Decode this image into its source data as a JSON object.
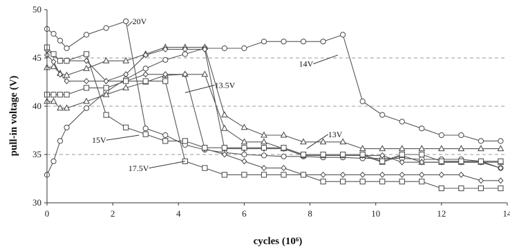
{
  "chart_data": {
    "type": "line",
    "xlabel": "cycles (10⁶)",
    "ylabel": "pull-in voltage (V)",
    "xlim": [
      0,
      14
    ],
    "ylim": [
      30,
      50
    ],
    "x_ticks": [
      "0",
      "2",
      "4",
      "6",
      "8",
      "10",
      "12",
      "14"
    ],
    "y_ticks": [
      "30",
      "35",
      "40",
      "45",
      "50"
    ],
    "grid": "horizontal dashed at 35, 40, 45",
    "legend": "none; series labeled inline",
    "series": [
      {
        "name": "20V",
        "marker": "circle",
        "label_pos": [
          2.6,
          48.5
        ],
        "label_anchor": [
          2.45,
          48.3
        ],
        "lines": [
          {
            "x": [
              0,
              0.2,
              0.4,
              0.6,
              1.2,
              1.8,
              2.4,
              3.0,
              3.6,
              4.2,
              4.8,
              5.4,
              6.0,
              6.6,
              7.2,
              7.8,
              8.4,
              9.0,
              9.6,
              10.2,
              10.8,
              11.4,
              12.0,
              12.6,
              13.2,
              13.8
            ],
            "y": [
              48.0,
              47.5,
              46.8,
              46.0,
              47.4,
              48.1,
              48.8,
              37.7,
              37.0,
              36.0,
              35.5,
              35.2,
              35.0,
              34.9,
              34.8,
              34.8,
              34.7,
              34.7,
              34.6,
              34.6,
              34.6,
              34.5,
              34.5,
              34.5,
              34.3,
              33.6
            ]
          }
        ]
      },
      {
        "name": "14V",
        "marker": "circle",
        "label_pos": [
          8.1,
          44.1
        ],
        "label_anchor": [
          8.85,
          45.3
        ],
        "lines": [
          {
            "x": [
              0,
              0.2,
              0.4,
              0.6,
              1.2,
              1.8,
              2.4,
              3.0,
              3.6,
              4.2,
              4.8,
              5.4,
              6.0,
              6.6,
              7.2,
              7.8,
              8.4,
              9.0,
              9.6,
              10.2,
              10.8,
              11.4,
              12.0,
              12.6,
              13.2,
              13.8
            ],
            "y": [
              32.9,
              34.3,
              36.4,
              37.8,
              39.8,
              41.5,
              42.8,
              43.9,
              44.8,
              45.4,
              46.0,
              46.0,
              46.0,
              46.7,
              46.7,
              46.7,
              46.7,
              47.4,
              40.5,
              39.1,
              38.4,
              37.7,
              37.0,
              37.0,
              36.4,
              36.4
            ]
          }
        ]
      },
      {
        "name": "13.5V",
        "marker": "triangle",
        "label_pos": [
          5.1,
          41.9
        ],
        "label_anchor": [
          4.2,
          41.4
        ],
        "lines": [
          {
            "x": [
              0,
              0.2,
              0.4,
              0.6,
              1.2,
              1.8,
              2.4,
              3.0,
              3.6,
              4.2,
              4.8,
              5.4,
              6.0,
              6.6,
              7.2,
              7.8,
              8.4,
              9.0,
              9.6,
              10.2,
              10.8,
              11.4,
              12.0,
              12.6,
              13.2,
              13.8
            ],
            "y": [
              44.0,
              44.1,
              43.4,
              43.2,
              43.9,
              44.7,
              44.7,
              45.4,
              46.1,
              46.1,
              46.1,
              39.1,
              37.8,
              37.0,
              37.0,
              36.3,
              36.3,
              36.3,
              35.6,
              35.6,
              35.6,
              35.6,
              35.6,
              35.6,
              35.6,
              35.6
            ]
          },
          {
            "x": [
              0,
              0.2,
              0.4,
              0.6,
              1.2,
              1.8,
              2.4,
              3.0,
              3.6,
              4.2,
              4.8,
              5.4,
              6.0,
              6.6,
              7.2,
              7.8,
              8.4,
              9.0,
              9.6,
              10.2,
              10.8,
              11.4,
              12.0,
              12.6,
              13.2,
              13.8
            ],
            "y": [
              40.5,
              40.5,
              39.8,
              39.8,
              40.5,
              41.2,
              41.9,
              42.5,
              43.2,
              43.3,
              43.3,
              37.7,
              36.3,
              36.3,
              35.6,
              34.9,
              34.9,
              34.9,
              34.9,
              34.2,
              34.9,
              34.2,
              34.2,
              34.2,
              34.2,
              34.2
            ]
          }
        ]
      },
      {
        "name": "13V",
        "marker": "diamond",
        "label_pos": [
          8.55,
          36.8
        ],
        "label_anchor": [
          7.9,
          35.6
        ],
        "lines": [
          {
            "x": [
              0,
              0.2,
              0.4,
              0.6,
              1.2,
              1.8,
              2.4,
              3.0,
              3.6,
              4.2,
              4.8,
              5.4,
              6.0,
              6.6,
              7.2,
              7.8,
              8.4,
              9.0,
              9.6,
              10.2,
              10.8,
              11.4,
              12.0,
              12.6,
              13.2,
              13.8
            ],
            "y": [
              45.3,
              44.6,
              43.3,
              42.6,
              42.6,
              42.6,
              43.3,
              45.3,
              45.9,
              45.9,
              45.9,
              35.6,
              35.6,
              35.6,
              35.6,
              34.9,
              34.9,
              34.9,
              34.9,
              34.9,
              34.2,
              34.2,
              34.2,
              34.2,
              34.2,
              33.6
            ]
          },
          {
            "x": [
              0,
              0.2,
              0.4,
              0.6,
              1.2,
              1.8,
              2.4,
              3.0,
              3.6,
              4.2,
              4.8,
              5.4,
              6.0,
              6.6,
              7.2,
              7.8,
              8.4,
              9.0,
              9.6,
              10.2,
              10.8,
              11.4,
              12.0,
              12.6,
              13.2,
              13.8
            ],
            "y": [
              45.8,
              45.3,
              44.7,
              44.7,
              44.7,
              42.6,
              42.6,
              43.3,
              43.3,
              43.3,
              35.6,
              35.0,
              34.3,
              33.6,
              33.6,
              32.9,
              32.9,
              32.9,
              32.9,
              32.9,
              32.9,
              32.9,
              32.9,
              32.9,
              32.3,
              32.3
            ]
          }
        ]
      },
      {
        "name": "15V",
        "marker": "square",
        "label_pos": [
          1.8,
          36.2
        ],
        "label_anchor": [
          2.8,
          37.0
        ],
        "lines": [
          {
            "x": [
              0,
              0.2,
              0.4,
              0.6,
              1.2,
              1.8,
              2.4,
              3.0,
              3.6,
              4.2,
              4.8,
              5.4,
              6.0,
              6.6,
              7.2,
              7.8,
              8.4,
              9.0,
              9.6,
              10.2,
              10.8,
              11.4,
              12.0,
              12.6,
              13.2,
              13.8
            ],
            "y": [
              46.1,
              45.4,
              44.7,
              44.7,
              45.4,
              39.1,
              37.8,
              37.1,
              36.4,
              36.4,
              35.7,
              35.7,
              35.7,
              35.7,
              35.7,
              35.0,
              35.0,
              35.0,
              35.0,
              34.3,
              35.0,
              35.0,
              34.3,
              34.3,
              34.3,
              34.3
            ]
          }
        ]
      },
      {
        "name": "17.5V",
        "marker": "square",
        "label_pos": [
          3.1,
          33.3
        ],
        "label_anchor": [
          4.2,
          34.3
        ],
        "lines": [
          {
            "x": [
              0,
              0.2,
              0.4,
              0.6,
              1.2,
              1.8,
              2.4,
              3.0,
              3.6,
              4.2,
              4.8,
              5.4,
              6.0,
              6.6,
              7.2,
              7.8,
              8.4,
              9.0,
              9.6,
              10.2,
              10.8,
              11.4,
              12.0,
              12.6,
              13.2,
              13.8
            ],
            "y": [
              41.2,
              41.2,
              41.2,
              41.2,
              41.9,
              41.9,
              42.6,
              42.6,
              42.6,
              34.3,
              33.6,
              32.9,
              32.9,
              32.9,
              32.9,
              32.9,
              32.2,
              32.2,
              32.2,
              32.2,
              32.2,
              32.2,
              31.5,
              31.5,
              31.5,
              31.5
            ]
          }
        ]
      }
    ]
  }
}
